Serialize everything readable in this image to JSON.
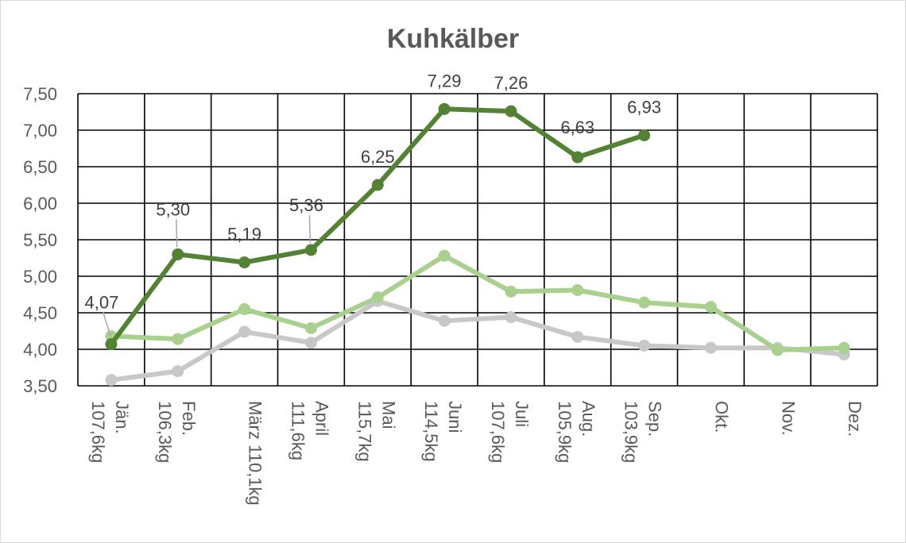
{
  "chart_data": {
    "type": "line",
    "title": "Kuhkälber",
    "xlabel": "",
    "ylabel": "",
    "ylim": [
      3.5,
      7.5
    ],
    "yticks": [
      "3,50",
      "4,00",
      "4,50",
      "5,00",
      "5,50",
      "6,00",
      "6,50",
      "7,00",
      "7,50"
    ],
    "grid": true,
    "legend": "none",
    "categories": [
      [
        "Jän.",
        "107,6kg"
      ],
      [
        "Feb.",
        "106,3kg"
      ],
      [
        "März 110,1kg"
      ],
      [
        "April",
        "111,6kg"
      ],
      [
        "Mai",
        "115,7kg"
      ],
      [
        "Juni",
        "114,5kg"
      ],
      [
        "Juli",
        "107,6kg"
      ],
      [
        "Aug.",
        "105,9kg"
      ],
      [
        "Sep.",
        "103,9kg"
      ],
      [
        "Okt."
      ],
      [
        "Nov."
      ],
      [
        "Dez."
      ]
    ],
    "series": [
      {
        "color": "#c8c8c8",
        "values": [
          3.58,
          3.7,
          4.24,
          4.09,
          4.66,
          4.39,
          4.44,
          4.17,
          4.05,
          4.02,
          4.02,
          3.93
        ]
      },
      {
        "color": "#a9d08e",
        "values": [
          4.18,
          4.14,
          4.55,
          4.29,
          4.71,
          5.28,
          4.79,
          4.81,
          4.64,
          4.58,
          3.99,
          4.02
        ]
      },
      {
        "color": "#548235",
        "values": [
          4.07,
          5.3,
          5.19,
          5.36,
          6.25,
          7.29,
          7.26,
          6.63,
          6.93,
          null,
          null,
          null
        ],
        "labels": [
          "4,07",
          "5,30",
          "5,19",
          "5,36",
          "6,25",
          "7,29",
          "7,26",
          "6,63",
          "6,93",
          null,
          null,
          null
        ]
      }
    ]
  }
}
